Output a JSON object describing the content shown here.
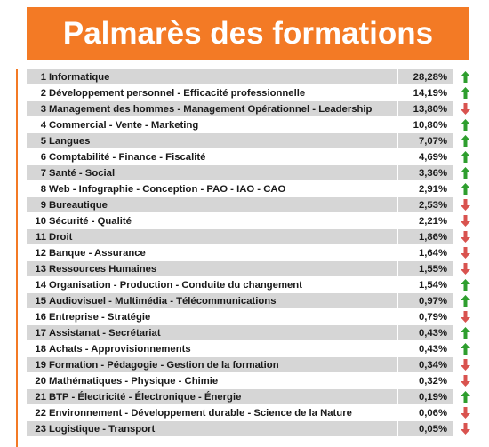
{
  "header": {
    "title": "Palmarès des formations"
  },
  "colors": {
    "accent": "#f37a25",
    "up": "#2e9e2e",
    "down": "#d9534f",
    "row_shade": "#d6d6d6"
  },
  "items": [
    {
      "rank": "1",
      "label": "Informatique",
      "percent": "28,28%",
      "trend": "up"
    },
    {
      "rank": "2",
      "label": "Développement personnel - Efficacité professionnelle",
      "percent": "14,19%",
      "trend": "up"
    },
    {
      "rank": "3",
      "label": "Management des hommes - Management Opérationnel - Leadership",
      "percent": "13,80%",
      "trend": "down"
    },
    {
      "rank": "4",
      "label": "Commercial - Vente - Marketing",
      "percent": "10,80%",
      "trend": "up"
    },
    {
      "rank": "5",
      "label": "Langues",
      "percent": "7,07%",
      "trend": "up"
    },
    {
      "rank": "6",
      "label": "Comptabilité - Finance - Fiscalité",
      "percent": "4,69%",
      "trend": "up"
    },
    {
      "rank": "7",
      "label": "Santé - Social",
      "percent": "3,36%",
      "trend": "up"
    },
    {
      "rank": "8",
      "label": "Web - Infographie - Conception - PAO - IAO - CAO",
      "percent": "2,91%",
      "trend": "up"
    },
    {
      "rank": "9",
      "label": "Bureautique",
      "percent": "2,53%",
      "trend": "down"
    },
    {
      "rank": "10",
      "label": "Sécurité - Qualité",
      "percent": "2,21%",
      "trend": "down"
    },
    {
      "rank": "11",
      "label": "Droit",
      "percent": "1,86%",
      "trend": "down"
    },
    {
      "rank": "12",
      "label": "Banque - Assurance",
      "percent": "1,64%",
      "trend": "down"
    },
    {
      "rank": "13",
      "label": "Ressources Humaines",
      "percent": "1,55%",
      "trend": "down"
    },
    {
      "rank": "14",
      "label": "Organisation - Production - Conduite du changement",
      "percent": "1,54%",
      "trend": "up"
    },
    {
      "rank": "15",
      "label": "Audiovisuel - Multimédia - Télécommunications",
      "percent": "0,97%",
      "trend": "up"
    },
    {
      "rank": "16",
      "label": "Entreprise - Stratégie",
      "percent": "0,79%",
      "trend": "down"
    },
    {
      "rank": "17",
      "label": "Assistanat - Secrétariat",
      "percent": "0,43%",
      "trend": "up"
    },
    {
      "rank": "18",
      "label": "Achats - Approvisionnements",
      "percent": "0,43%",
      "trend": "up"
    },
    {
      "rank": "19",
      "label": "Formation - Pédagogie - Gestion de la formation",
      "percent": "0,34%",
      "trend": "down"
    },
    {
      "rank": "20",
      "label": "Mathématiques - Physique - Chimie",
      "percent": "0,32%",
      "trend": "down"
    },
    {
      "rank": "21",
      "label": "BTP - Électricité - Électronique - Énergie",
      "percent": "0,19%",
      "trend": "up"
    },
    {
      "rank": "22",
      "label": "Environnement - Développement durable - Science de la Nature",
      "percent": "0,06%",
      "trend": "down"
    },
    {
      "rank": "23",
      "label": "Logistique - Transport",
      "percent": "0,05%",
      "trend": "down"
    }
  ]
}
